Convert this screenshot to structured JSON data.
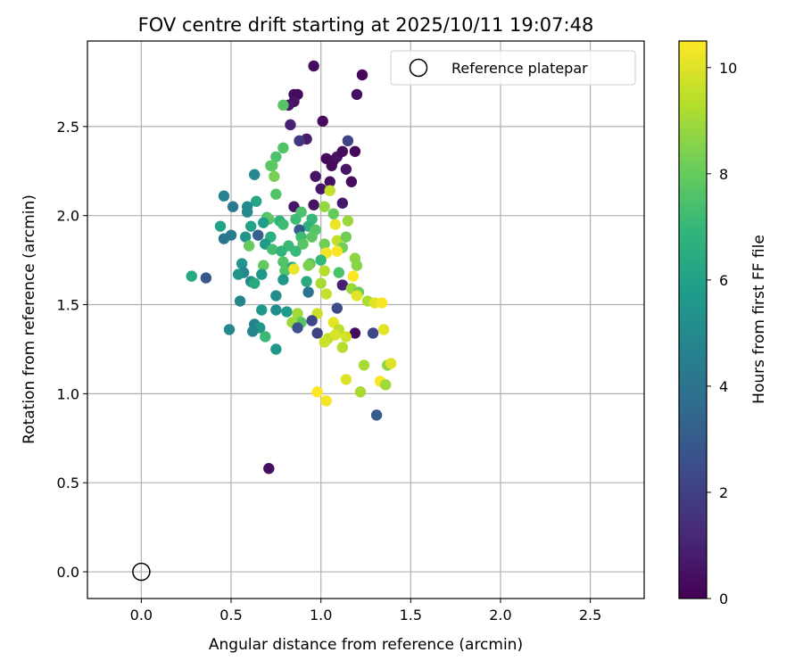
{
  "chart_data": {
    "type": "scatter",
    "title": "FOV centre drift starting at 2025/10/11 19:07:48",
    "xlabel": "Angular distance from reference (arcmin)",
    "ylabel": "Rotation from reference (arcmin)",
    "xlim": [
      -0.3,
      2.8
    ],
    "ylim": [
      -0.15,
      2.98
    ],
    "xticks": [
      0.0,
      0.5,
      1.0,
      1.5,
      2.0,
      2.5
    ],
    "yticks": [
      0.0,
      0.5,
      1.0,
      1.5,
      2.0,
      2.5
    ],
    "xtick_labels": [
      "0.0",
      "0.5",
      "1.0",
      "1.5",
      "2.0",
      "2.5"
    ],
    "ytick_labels": [
      "0.0",
      "0.5",
      "1.0",
      "1.5",
      "2.0",
      "2.5"
    ],
    "grid": true,
    "legend": {
      "placement": "top-right",
      "entries": [
        {
          "label": "Reference platepar",
          "marker": "hollow-circle"
        }
      ]
    },
    "reference_point": {
      "x": 0.0,
      "y": 0.0
    },
    "colorbar": {
      "label": "Hours from first FF file",
      "range": [
        0,
        10.5
      ],
      "ticks": [
        0,
        2,
        4,
        6,
        8,
        10
      ],
      "tick_labels": [
        "0",
        "2",
        "4",
        "6",
        "8",
        "10"
      ],
      "colormap": "viridis",
      "colors": [
        "#440154",
        "#482878",
        "#3e4989",
        "#31688e",
        "#26828e",
        "#1f9e89",
        "#35b779",
        "#6ece58",
        "#b5de2b",
        "#fde725"
      ]
    },
    "series": [
      {
        "points": [
          [
            0.96,
            2.84,
            0.3
          ],
          [
            1.23,
            2.79,
            0.2
          ],
          [
            0.85,
            2.68,
            0.4
          ],
          [
            0.87,
            2.68,
            0.3
          ],
          [
            1.2,
            2.68,
            0.4
          ],
          [
            0.85,
            2.64,
            0.5
          ],
          [
            0.82,
            2.62,
            0.6
          ],
          [
            0.79,
            2.62,
            7.7
          ],
          [
            1.01,
            2.53,
            0.3
          ],
          [
            0.83,
            2.51,
            1.0
          ],
          [
            0.92,
            2.43,
            0.8
          ],
          [
            0.88,
            2.42,
            1.7
          ],
          [
            1.15,
            2.42,
            2.2
          ],
          [
            1.03,
            2.32,
            0.2
          ],
          [
            1.07,
            2.31,
            0.3
          ],
          [
            1.09,
            2.33,
            0.5
          ],
          [
            1.12,
            2.36,
            0.3
          ],
          [
            1.19,
            2.36,
            0.2
          ],
          [
            1.06,
            2.28,
            0.3
          ],
          [
            1.14,
            2.26,
            0.6
          ],
          [
            0.79,
            2.38,
            7.6
          ],
          [
            0.75,
            2.33,
            7.5
          ],
          [
            0.73,
            2.28,
            7.9
          ],
          [
            0.72,
            2.28,
            7.8
          ],
          [
            0.63,
            2.23,
            4.9
          ],
          [
            0.74,
            2.22,
            8.3
          ],
          [
            0.97,
            2.22,
            0.5
          ],
          [
            1.05,
            2.19,
            0.4
          ],
          [
            1.17,
            2.19,
            0.3
          ],
          [
            1.0,
            2.15,
            0.6
          ],
          [
            1.05,
            2.14,
            9.6
          ],
          [
            0.75,
            2.12,
            7.6
          ],
          [
            0.46,
            2.11,
            4.6
          ],
          [
            0.64,
            2.08,
            6.2
          ],
          [
            0.51,
            2.05,
            4.3
          ],
          [
            0.85,
            2.05,
            0.6
          ],
          [
            0.96,
            2.06,
            0.5
          ],
          [
            1.12,
            2.07,
            0.7
          ],
          [
            0.59,
            2.05,
            5.1
          ],
          [
            1.02,
            2.05,
            8.8
          ],
          [
            0.59,
            2.02,
            4.9
          ],
          [
            0.89,
            2.02,
            7.5
          ],
          [
            1.07,
            2.01,
            8.0
          ],
          [
            0.7,
            1.99,
            7.5
          ],
          [
            0.71,
            1.98,
            7.8
          ],
          [
            0.77,
            1.97,
            6.8
          ],
          [
            0.86,
            1.98,
            7.2
          ],
          [
            0.95,
            1.98,
            7.0
          ],
          [
            1.15,
            1.97,
            8.9
          ],
          [
            0.68,
            1.96,
            5.8
          ],
          [
            0.44,
            1.94,
            6.0
          ],
          [
            0.79,
            1.95,
            7.2
          ],
          [
            0.61,
            1.94,
            6.0
          ],
          [
            0.93,
            1.94,
            6.7
          ],
          [
            1.08,
            1.95,
            10.2
          ],
          [
            0.88,
            1.92,
            3.0
          ],
          [
            0.97,
            1.92,
            7.7
          ],
          [
            0.5,
            1.89,
            4.4
          ],
          [
            0.46,
            1.87,
            4.1
          ],
          [
            0.58,
            1.88,
            5.4
          ],
          [
            0.65,
            1.89,
            3.2
          ],
          [
            0.72,
            1.88,
            6.6
          ],
          [
            0.89,
            1.88,
            7.2
          ],
          [
            0.95,
            1.88,
            7.8
          ],
          [
            1.09,
            1.86,
            9.5
          ],
          [
            1.14,
            1.88,
            8.2
          ],
          [
            0.69,
            1.84,
            5.7
          ],
          [
            0.6,
            1.83,
            8.0
          ],
          [
            0.82,
            1.83,
            7.1
          ],
          [
            0.9,
            1.84,
            7.7
          ],
          [
            1.02,
            1.84,
            8.2
          ],
          [
            1.12,
            1.82,
            8.2
          ],
          [
            0.73,
            1.81,
            7.3
          ],
          [
            0.78,
            1.8,
            6.8
          ],
          [
            0.86,
            1.8,
            7.1
          ],
          [
            1.03,
            1.79,
            10.3
          ],
          [
            1.09,
            1.8,
            10.4
          ],
          [
            1.19,
            1.76,
            8.7
          ],
          [
            0.56,
            1.73,
            5.4
          ],
          [
            0.68,
            1.72,
            7.9
          ],
          [
            0.79,
            1.74,
            7.6
          ],
          [
            0.94,
            1.73,
            7.7
          ],
          [
            1.0,
            1.75,
            7.0
          ],
          [
            0.84,
            1.71,
            6.4
          ],
          [
            0.93,
            1.72,
            8.4
          ],
          [
            1.2,
            1.72,
            8.6
          ],
          [
            0.57,
            1.68,
            4.9
          ],
          [
            0.54,
            1.67,
            5.4
          ],
          [
            0.67,
            1.67,
            5.6
          ],
          [
            0.8,
            1.69,
            7.6
          ],
          [
            0.85,
            1.7,
            10.2
          ],
          [
            1.02,
            1.69,
            9.3
          ],
          [
            1.1,
            1.68,
            7.5
          ],
          [
            1.18,
            1.66,
            10.5
          ],
          [
            0.28,
            1.66,
            6.3
          ],
          [
            0.36,
            1.65,
            2.9
          ],
          [
            0.61,
            1.63,
            5.1
          ],
          [
            0.63,
            1.62,
            6.4
          ],
          [
            0.79,
            1.64,
            5.5
          ],
          [
            0.92,
            1.63,
            6.4
          ],
          [
            1.0,
            1.62,
            9.1
          ],
          [
            1.12,
            1.61,
            0.9
          ],
          [
            1.17,
            1.59,
            8.9
          ],
          [
            1.21,
            1.57,
            8.2
          ],
          [
            0.93,
            1.57,
            4.1
          ],
          [
            1.03,
            1.56,
            9.6
          ],
          [
            1.2,
            1.55,
            10.1
          ],
          [
            0.75,
            1.55,
            5.1
          ],
          [
            0.55,
            1.52,
            4.8
          ],
          [
            1.26,
            1.52,
            9.2
          ],
          [
            1.3,
            1.51,
            10.0
          ],
          [
            1.34,
            1.51,
            10.4
          ],
          [
            0.67,
            1.47,
            5.6
          ],
          [
            0.75,
            1.47,
            5.2
          ],
          [
            0.81,
            1.46,
            5.7
          ],
          [
            0.87,
            1.45,
            9.0
          ],
          [
            0.98,
            1.45,
            9.7
          ],
          [
            1.09,
            1.48,
            2.4
          ],
          [
            0.89,
            1.4,
            7.7
          ],
          [
            0.84,
            1.4,
            8.9
          ],
          [
            0.95,
            1.41,
            2.3
          ],
          [
            1.07,
            1.4,
            10.1
          ],
          [
            0.63,
            1.39,
            4.7
          ],
          [
            0.66,
            1.37,
            5.5
          ],
          [
            0.87,
            1.37,
            2.7
          ],
          [
            0.49,
            1.36,
            4.9
          ],
          [
            0.62,
            1.35,
            4.8
          ],
          [
            0.98,
            1.34,
            2.1
          ],
          [
            1.1,
            1.36,
            9.4
          ],
          [
            1.19,
            1.34,
            0.3
          ],
          [
            1.29,
            1.34,
            2.3
          ],
          [
            1.35,
            1.36,
            10.1
          ],
          [
            1.04,
            1.31,
            9.5
          ],
          [
            1.08,
            1.33,
            9.9
          ],
          [
            1.14,
            1.32,
            9.8
          ],
          [
            1.02,
            1.29,
            9.7
          ],
          [
            0.69,
            1.32,
            7.1
          ],
          [
            1.12,
            1.26,
            9.3
          ],
          [
            0.75,
            1.25,
            5.6
          ],
          [
            1.24,
            1.16,
            9.1
          ],
          [
            1.37,
            1.16,
            8.7
          ],
          [
            1.39,
            1.17,
            10.0
          ],
          [
            1.14,
            1.08,
            10.0
          ],
          [
            1.33,
            1.07,
            10.4
          ],
          [
            1.36,
            1.05,
            9.0
          ],
          [
            0.98,
            1.01,
            10.5
          ],
          [
            1.22,
            1.01,
            9.1
          ],
          [
            1.03,
            0.96,
            10.4
          ],
          [
            1.31,
            0.88,
            3.0
          ],
          [
            0.71,
            0.58,
            0.4
          ]
        ]
      }
    ]
  }
}
